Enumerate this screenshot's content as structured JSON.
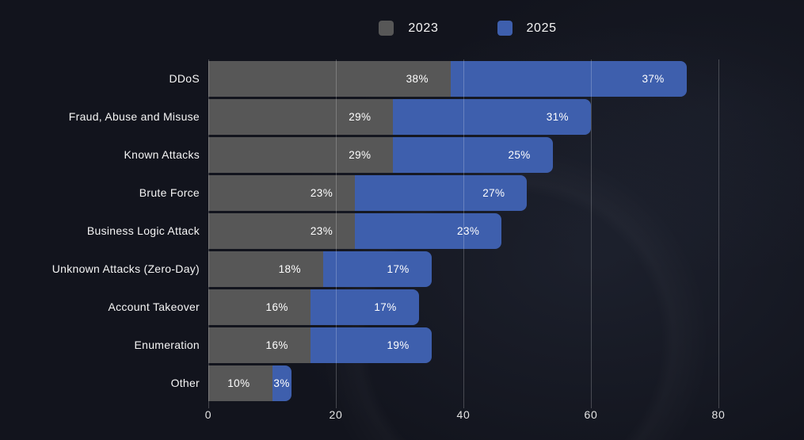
{
  "page": {
    "background_color": "#12141d"
  },
  "chart_data": {
    "type": "bar",
    "orientation": "horizontal",
    "stacked": true,
    "title": "",
    "xlabel": "",
    "ylabel": "",
    "categories": [
      "DDoS",
      "Fraud, Abuse and Misuse",
      "Known Attacks",
      "Brute Force",
      "Business Logic Attack",
      "Unknown Attacks (Zero-Day)",
      "Account Takeover",
      "Enumeration",
      "Other"
    ],
    "series": [
      {
        "name": "2023",
        "color": "#575757",
        "values": [
          38,
          29,
          29,
          23,
          23,
          18,
          16,
          16,
          10
        ],
        "data_labels": [
          "38%",
          "29%",
          "29%",
          "23%",
          "23%",
          "18%",
          "16%",
          "16%",
          "10%"
        ]
      },
      {
        "name": "2025",
        "color": "#3e5fad",
        "values": [
          37,
          31,
          25,
          27,
          23,
          17,
          17,
          19,
          3
        ],
        "data_labels": [
          "37%",
          "31%",
          "25%",
          "27%",
          "23%",
          "17%",
          "17%",
          "19%",
          "3%"
        ]
      }
    ],
    "xlim": [
      0,
      80
    ],
    "xticks": [
      "0",
      "20",
      "40",
      "60",
      "80"
    ],
    "grid": true,
    "gridline_color": "rgba(255,255,255,0.22)",
    "legend_position": "top-center",
    "value_unit": "%",
    "label_text_color": "#ffffff"
  }
}
